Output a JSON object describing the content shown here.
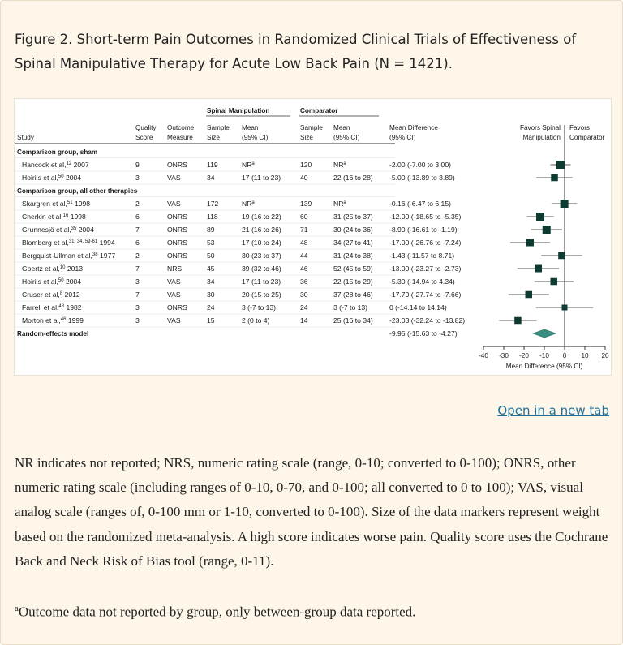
{
  "caption": "Figure 2. Short-term Pain Outcomes in Randomized Clinical Trials of Effectiveness of Spinal Manipulative Therapy for Acute Low Back Pain (N = 1421).",
  "open_link": "Open in a new tab",
  "notes": "NR indicates not reported; NRS, numeric rating scale (range, 0-10; converted to 0-100); ONRS, other numeric rating scale (including ranges of 0-10, 0-70, and 0-100; all converted to 0 to 100); VAS, visual analog scale (ranges of, 0-100 mm or 1-10, converted to 0-100). Size of the data markers represent weight based on the randomized meta-analysis. A high score indicates worse pain. Quality score uses the Cochrane Back and Neck Risk of Bias tool (range, 0-11).",
  "footnote": {
    "mark": "a",
    "text": "Outcome data not reported by group, only between-group data reported."
  },
  "colors": {
    "marker": "#0d3b32",
    "diamond": "#3a8d7f",
    "link": "#1f6f9a"
  },
  "table": {
    "group_headers": {
      "spinal": "Spinal Manipulation",
      "comparator": "Comparator"
    },
    "headers": {
      "study": "Study",
      "quality": [
        "Quality",
        "Score"
      ],
      "outcome": [
        "Outcome",
        "Measure"
      ],
      "sp_size": [
        "Sample",
        "Size"
      ],
      "sp_mean": [
        "Mean",
        "(95% CI)"
      ],
      "co_size": [
        "Sample",
        "Size"
      ],
      "co_mean": [
        "Mean",
        "(95% CI)"
      ],
      "diff": [
        "Mean Difference",
        "(95% CI)"
      ],
      "favors_left": [
        "Favors Spinal",
        "Manipulation"
      ],
      "favors_right": [
        "Favors",
        "Comparator"
      ]
    },
    "groups": [
      {
        "label": "Comparison group, sham",
        "rows": [
          {
            "author": "Hancock et al,",
            "ref": "12",
            "year": "2007",
            "quality": "9",
            "outcome": "ONRS",
            "sp_size": "119",
            "sp_mean": "NR",
            "sp_mean_sup": "a",
            "co_size": "120",
            "co_mean": "NR",
            "co_mean_sup": "a",
            "diff": "-2.00 (-7.00 to 3.00)",
            "est": -2.0,
            "lo": -7.0,
            "hi": 3.0,
            "weight": 1.0
          },
          {
            "author": "Hoiriis et al,",
            "ref": "50",
            "year": "2004",
            "quality": "3",
            "outcome": "VAS",
            "sp_size": "34",
            "sp_mean": "17 (11 to 23)",
            "co_size": "40",
            "co_mean": "22 (16 to 28)",
            "diff": "-5.00 (-13.89 to 3.89)",
            "est": -5.0,
            "lo": -13.89,
            "hi": 3.89,
            "weight": 0.85
          }
        ]
      },
      {
        "label": "Comparison group, all other therapies",
        "rows": [
          {
            "author": "Skargren et al,",
            "ref": "51",
            "year": "1998",
            "quality": "2",
            "outcome": "VAS",
            "sp_size": "172",
            "sp_mean": "NR",
            "sp_mean_sup": "a",
            "co_size": "139",
            "co_mean": "NR",
            "co_mean_sup": "a",
            "diff": "-0.16 (-6.47 to 6.15)",
            "est": -0.16,
            "lo": -6.47,
            "hi": 6.15,
            "weight": 1.0
          },
          {
            "author": "Cherkin et al,",
            "ref": "16",
            "year": "1998",
            "quality": "6",
            "outcome": "ONRS",
            "sp_size": "118",
            "sp_mean": "19 (16 to 22)",
            "co_size": "60",
            "co_mean": "31 (25 to 37)",
            "diff": "-12.00 (-18.65 to -5.35)",
            "est": -12.0,
            "lo": -18.65,
            "hi": -5.35,
            "weight": 1.0
          },
          {
            "author": "Grunnesjö et al,",
            "ref": "35",
            "year": "2004",
            "quality": "7",
            "outcome": "ONRS",
            "sp_size": "89",
            "sp_mean": "21 (16 to 26)",
            "co_size": "71",
            "co_mean": "30 (24 to 36)",
            "diff": "-8.90 (-16.61 to -1.19)",
            "est": -8.9,
            "lo": -16.61,
            "hi": -1.19,
            "weight": 1.0
          },
          {
            "author": "Blomberg et al,",
            "ref": "31, 34, 59-61",
            "year": "1994",
            "quality": "6",
            "outcome": "ONRS",
            "sp_size": "53",
            "sp_mean": "17 (10 to 24)",
            "co_size": "48",
            "co_mean": "34 (27 to 41)",
            "diff": "-17.00 (-26.76 to -7.24)",
            "est": -17.0,
            "lo": -26.76,
            "hi": -7.24,
            "weight": 0.9
          },
          {
            "author": "Bergquist-Ullman et al,",
            "ref": "38",
            "year": "1977",
            "quality": "2",
            "outcome": "ONRS",
            "sp_size": "50",
            "sp_mean": "30 (23 to 37)",
            "co_size": "44",
            "co_mean": "31 (24 to 38)",
            "diff": "-1.43 (-11.57 to 8.71)",
            "est": -1.43,
            "lo": -11.57,
            "hi": 8.71,
            "weight": 0.85
          },
          {
            "author": "Goertz et al,",
            "ref": "10",
            "year": "2013",
            "quality": "7",
            "outcome": "NRS",
            "sp_size": "45",
            "sp_mean": "39 (32 to 46)",
            "co_size": "46",
            "co_mean": "52 (45 to 59)",
            "diff": "-13.00 (-23.27 to -2.73)",
            "est": -13.0,
            "lo": -23.27,
            "hi": -2.73,
            "weight": 0.9
          },
          {
            "author": "Hoiriis et al,",
            "ref": "50",
            "year": "2004",
            "quality": "3",
            "outcome": "VAS",
            "sp_size": "34",
            "sp_mean": "17 (11 to 23)",
            "co_size": "36",
            "co_mean": "22 (15 to 29)",
            "diff": "-5.30 (-14.94 to 4.34)",
            "est": -5.3,
            "lo": -14.94,
            "hi": 4.34,
            "weight": 0.85
          },
          {
            "author": "Cruser et al,",
            "ref": "8",
            "year": "2012",
            "quality": "7",
            "outcome": "VAS",
            "sp_size": "30",
            "sp_mean": "20 (15 to 25)",
            "co_size": "30",
            "co_mean": "37 (28 to 46)",
            "diff": "-17.70 (-27.74 to -7.66)",
            "est": -17.7,
            "lo": -27.74,
            "hi": -7.66,
            "weight": 0.85
          },
          {
            "author": "Farrell et al,",
            "ref": "48",
            "year": "1982",
            "quality": "3",
            "outcome": "ONRS",
            "sp_size": "24",
            "sp_mean": "3 (-7 to 13)",
            "co_size": "24",
            "co_mean": "3 (-7 to 13)",
            "diff": "0 (-14.14 to 14.14)",
            "est": 0.0,
            "lo": -14.14,
            "hi": 14.14,
            "weight": 0.7
          },
          {
            "author": "Morton et al,",
            "ref": "46",
            "year": "1999",
            "quality": "3",
            "outcome": "VAS",
            "sp_size": "15",
            "sp_mean": "2 (0 to 4)",
            "co_size": "14",
            "co_mean": "25 (16 to 34)",
            "diff": "-23.03 (-32.24 to -13.82)",
            "est": -23.03,
            "lo": -32.24,
            "hi": -13.82,
            "weight": 0.85
          }
        ]
      }
    ],
    "pooled": {
      "label": "Random-effects model",
      "diff": "-9.95 (-15.63 to -4.27)",
      "est": -9.95,
      "lo": -15.63,
      "hi": -4.27
    }
  },
  "chart_data": {
    "type": "scatter",
    "title": "",
    "xlabel": "Mean Difference (95% CI)",
    "ylabel": "",
    "xlim": [
      -40,
      20
    ],
    "ticks": [
      -40,
      -30,
      -20,
      -10,
      0,
      10,
      20
    ],
    "tick_labels": [
      "-40",
      "-30",
      "-20",
      "-10",
      "0",
      "10",
      "20"
    ],
    "series": [
      {
        "name": "Studies",
        "x": [
          -2.0,
          -5.0,
          -0.16,
          -12.0,
          -8.9,
          -17.0,
          -1.43,
          -13.0,
          -5.3,
          -17.7,
          0.0,
          -23.03
        ],
        "ci_low": [
          -7.0,
          -13.89,
          -6.47,
          -18.65,
          -16.61,
          -26.76,
          -11.57,
          -23.27,
          -14.94,
          -27.74,
          -14.14,
          -32.24
        ],
        "ci_high": [
          3.0,
          3.89,
          6.15,
          -5.35,
          -1.19,
          -7.24,
          8.71,
          -2.73,
          4.34,
          -7.66,
          14.14,
          -13.82
        ]
      },
      {
        "name": "Random-effects model",
        "x": [
          -9.95
        ],
        "ci_low": [
          -15.63
        ],
        "ci_high": [
          -4.27
        ]
      }
    ]
  }
}
